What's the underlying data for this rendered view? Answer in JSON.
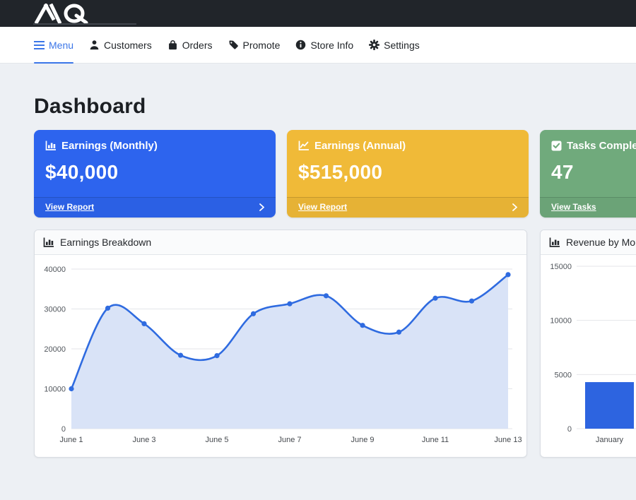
{
  "brand": {
    "name": "AQ"
  },
  "colors": {
    "topbar_bg": "#21252a",
    "page_bg": "#edf0f4",
    "accent_blue": "#3b76e8",
    "card_blue": "#2d64ee",
    "card_yellow": "#f0ba38",
    "card_green": "#70aa7c"
  },
  "nav": {
    "items": [
      {
        "label": "Menu",
        "icon": "hamburger-icon",
        "active": true
      },
      {
        "label": "Customers",
        "icon": "person-icon",
        "active": false
      },
      {
        "label": "Orders",
        "icon": "bag-icon",
        "active": false
      },
      {
        "label": "Promote",
        "icon": "tag-icon",
        "active": false
      },
      {
        "label": "Store Info",
        "icon": "info-icon",
        "active": false
      },
      {
        "label": "Settings",
        "icon": "gear-icon",
        "active": false
      }
    ]
  },
  "page": {
    "title": "Dashboard"
  },
  "stat_cards": [
    {
      "title": "Earnings (Monthly)",
      "value": "$40,000",
      "link_label": "View Report",
      "color": "#2d64ee",
      "icon": "chart-bar-icon"
    },
    {
      "title": "Earnings (Annual)",
      "value": "$515,000",
      "link_label": "View Report",
      "color": "#f0ba38",
      "icon": "chart-line-icon"
    },
    {
      "title": "Tasks Completed",
      "value": "47",
      "link_label": "View Tasks",
      "color": "#70aa7c",
      "icon": "check-square-icon"
    }
  ],
  "chart_data": [
    {
      "type": "line",
      "title": "Earnings Breakdown",
      "x": [
        "June 1",
        "June 2",
        "June 3",
        "June 4",
        "June 5",
        "June 6",
        "June 7",
        "June 8",
        "June 9",
        "June 10",
        "June 11",
        "June 12",
        "June 13"
      ],
      "values": [
        10000,
        30200,
        26300,
        18400,
        18300,
        28800,
        31300,
        33300,
        25900,
        24200,
        32700,
        32000,
        38600
      ],
      "xtick_labels": [
        "June 1",
        "June 3",
        "June 5",
        "June 7",
        "June 9",
        "June 11",
        "June 13"
      ],
      "yticks": [
        0,
        10000,
        20000,
        30000,
        40000
      ],
      "ylim": [
        0,
        40000
      ],
      "grid": true,
      "legend": false,
      "line_color": "#2f6be0",
      "fill_color": "#d9e3f7",
      "xlabel": "",
      "ylabel": ""
    },
    {
      "type": "bar",
      "title": "Revenue by Month",
      "categories": [
        "January"
      ],
      "values": [
        4300
      ],
      "yticks": [
        0,
        5000,
        10000,
        15000
      ],
      "ylim": [
        0,
        15000
      ],
      "grid": true,
      "legend": false,
      "bar_color": "#2d64e0",
      "xlabel": "",
      "ylabel": ""
    }
  ]
}
